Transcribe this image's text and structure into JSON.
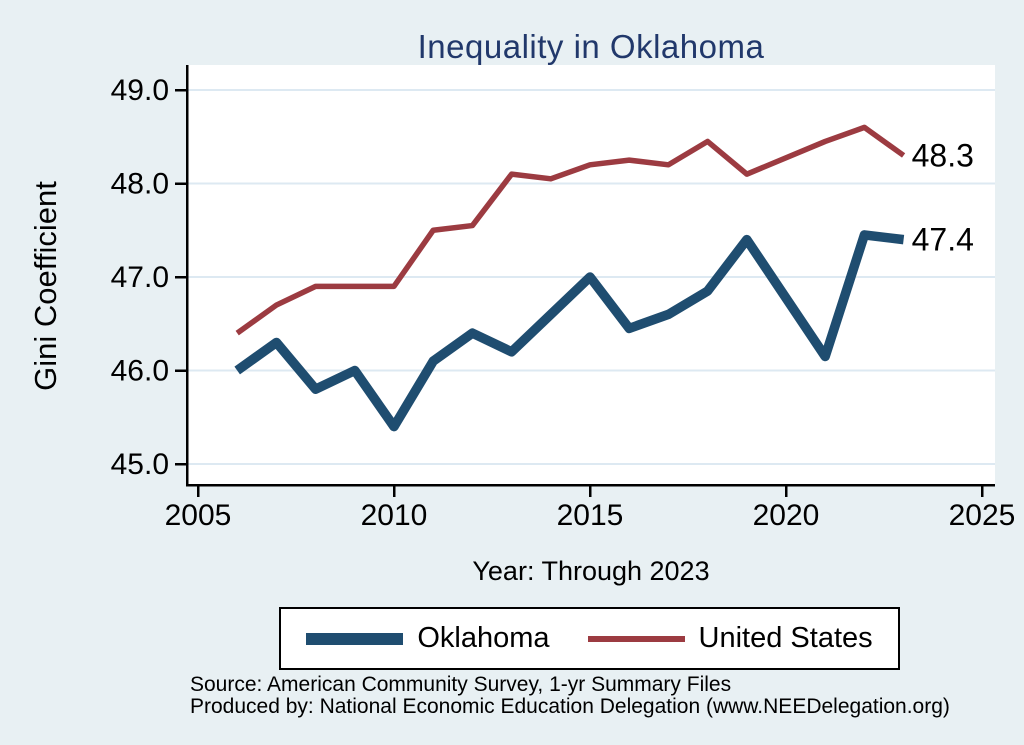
{
  "title": "Inequality in Oklahoma",
  "colors": {
    "background": "#e8f0f3",
    "plot_background": "#ffffff",
    "gridline": "#dde9f2",
    "axis": "#000000",
    "title_text": "#21386b",
    "oklahoma_line": "#1f4d70",
    "united_states_line": "#9c3b41"
  },
  "chart_data": {
    "type": "line",
    "title": "Inequality in Oklahoma",
    "xlabel": "Year: Through 2023",
    "ylabel": "Gini Coefficient",
    "grid": "horizontal-only",
    "legend_position": "bottom",
    "xlim": [
      2004.7,
      2025.3
    ],
    "ylim": [
      44.8,
      49.25
    ],
    "x_ticks": [
      2005,
      2010,
      2015,
      2020,
      2025
    ],
    "x_tick_labels": [
      "2005",
      "2010",
      "2015",
      "2020",
      "2025"
    ],
    "y_ticks": [
      45,
      46,
      47,
      48,
      49
    ],
    "y_tick_labels": [
      "45.0",
      "46.0",
      "47.0",
      "48.0",
      "49.0"
    ],
    "x": [
      2006,
      2007,
      2008,
      2009,
      2010,
      2011,
      2012,
      2013,
      2014,
      2015,
      2016,
      2017,
      2018,
      2019,
      2021,
      2022,
      2023
    ],
    "series": [
      {
        "name": "Oklahoma",
        "color": "#1f4d70",
        "line_width": 9.5,
        "end_label": "47.4",
        "values": [
          46.0,
          46.3,
          45.8,
          46.0,
          45.4,
          46.1,
          46.4,
          46.2,
          46.6,
          47.0,
          46.45,
          46.6,
          46.85,
          47.4,
          46.15,
          47.45,
          47.4
        ]
      },
      {
        "name": "United States",
        "color": "#9c3b41",
        "line_width": 5.5,
        "end_label": "48.3",
        "values": [
          46.4,
          46.7,
          46.9,
          46.9,
          46.9,
          47.5,
          47.55,
          48.1,
          48.05,
          48.2,
          48.25,
          48.2,
          48.45,
          48.1,
          48.45,
          48.6,
          48.3
        ]
      }
    ]
  },
  "footnotes": {
    "source": "Source: American Community Survey, 1-yr Summary Files",
    "produced_by": "Produced by: National Economic Education Delegation (www.NEEDelegation.org)"
  }
}
